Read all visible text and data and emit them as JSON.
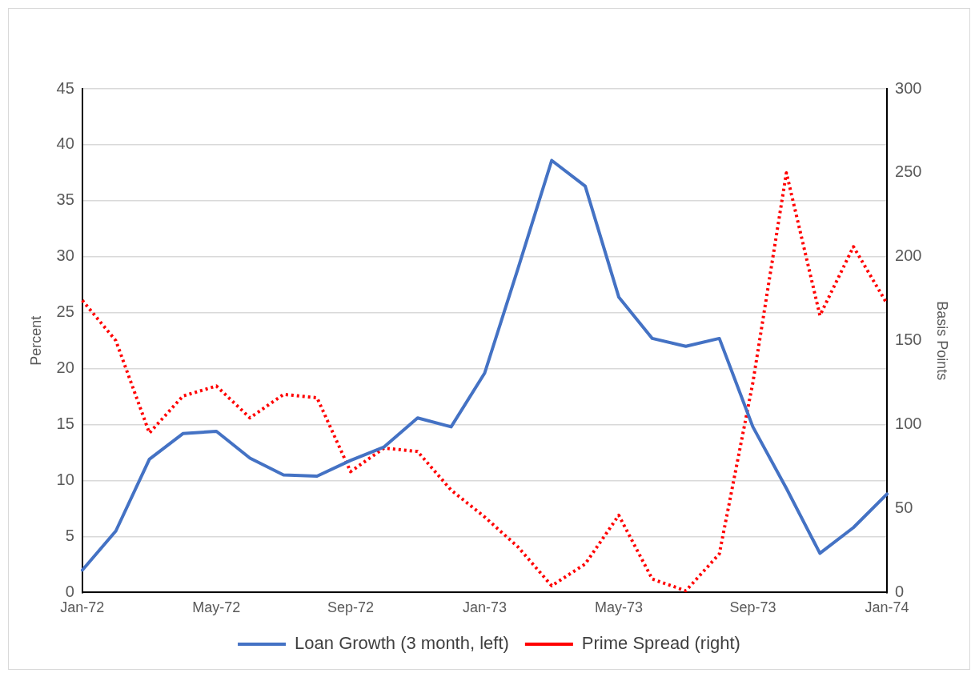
{
  "chart_data": {
    "type": "line",
    "categories": [
      "Jan-72",
      null,
      null,
      null,
      "May-72",
      null,
      null,
      null,
      "Sep-72",
      null,
      null,
      null,
      "Jan-73",
      null,
      null,
      null,
      "May-73",
      null,
      null,
      null,
      "Sep-73",
      null,
      null,
      null,
      "Jan-74"
    ],
    "series": [
      {
        "name": "Loan Growth (3 month, left)",
        "color": "#4472c4",
        "line_style": "solid",
        "values": [
          2,
          5.5,
          11.9,
          14.2,
          14.4,
          12,
          10.5,
          10.4,
          11.8,
          13,
          15.6,
          14.8,
          19.6,
          29,
          38.6,
          36.3,
          26.4,
          22.7,
          22,
          22.7,
          14.8,
          9.3,
          3.5,
          5.8,
          8.8
        ]
      },
      {
        "name": "Prime Spread (right)",
        "color": "#ff0000",
        "line_style": "dotted",
        "axis": "y2",
        "values": [
          174,
          150,
          95,
          117,
          123,
          104,
          118,
          116,
          72,
          86,
          84,
          61,
          45,
          27,
          4,
          17,
          46,
          8,
          1,
          23,
          125,
          250,
          165,
          206,
          172
        ]
      }
    ],
    "ylabel": "Percent",
    "y2label": "Basis Points",
    "ylim": [
      0,
      45
    ],
    "yticks": [
      0,
      5,
      10,
      15,
      20,
      25,
      30,
      35,
      40,
      45
    ],
    "y2lim": [
      0,
      300
    ],
    "y2ticks": [
      0,
      50,
      100,
      150,
      200,
      250,
      300
    ],
    "grid": "y",
    "legend": "bottom",
    "marker": "none"
  }
}
